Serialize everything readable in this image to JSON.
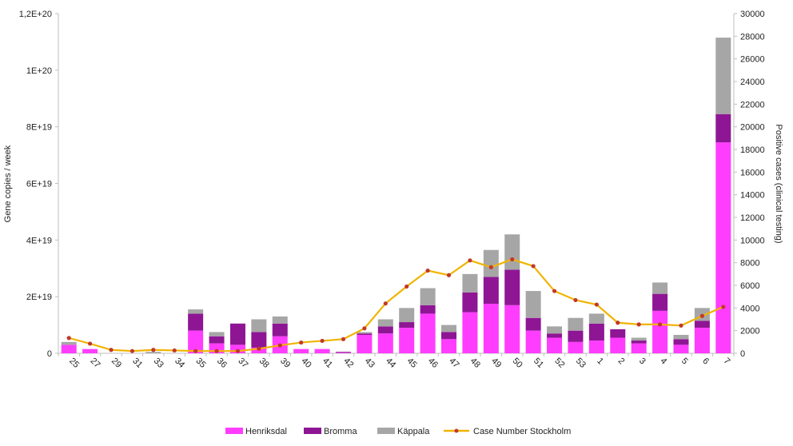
{
  "chart_data": {
    "type": "bar",
    "stacked": true,
    "categories": [
      "25",
      "27",
      "29",
      "31",
      "33",
      "34",
      "35",
      "36",
      "37",
      "38",
      "39",
      "40",
      "41",
      "42",
      "43",
      "44",
      "45",
      "46",
      "47",
      "48",
      "49",
      "50",
      "51",
      "52",
      "53",
      "1",
      "2",
      "3",
      "4",
      "5",
      "6",
      "7"
    ],
    "ylabel": "Gene copies / week",
    "y2label": "Positive cases (clinical testing)",
    "ylim": [
      0,
      1.2e+20
    ],
    "yticks": [
      0,
      2e+19,
      4e+19,
      6e+19,
      8e+19,
      1e+20,
      1.2e+20
    ],
    "ytick_labels": [
      "0",
      "2E+19",
      "4E+19",
      "6E+19",
      "8E+19",
      "1E+20",
      "1,2E+20"
    ],
    "y2lim": [
      0,
      30000
    ],
    "y2ticks": [
      0,
      2000,
      4000,
      6000,
      8000,
      10000,
      12000,
      14000,
      16000,
      18000,
      20000,
      22000,
      24000,
      26000,
      28000,
      30000
    ],
    "y2tick_labels": [
      "0",
      "2000",
      "4000",
      "6000",
      "8000",
      "10000",
      "12000",
      "14000",
      "16000",
      "18000",
      "20000",
      "22000",
      "24000",
      "26000",
      "28000",
      "30000"
    ],
    "grid": false,
    "legend_position": "bottom",
    "series": [
      {
        "name": "Henriksdal",
        "color": "#ff3dff",
        "axis": "left",
        "values": [
          3e+18,
          1.5e+18,
          0,
          0,
          0,
          0,
          8e+18,
          3.5e+18,
          3e+18,
          2e+18,
          6e+18,
          1.5e+18,
          1.5e+18,
          2e+17,
          6.5e+18,
          7e+18,
          9e+18,
          1.4e+19,
          5e+18,
          1.45e+19,
          1.75e+19,
          1.7e+19,
          8e+18,
          5.5e+18,
          4e+18,
          4.5e+18,
          5.5e+18,
          3.5e+18,
          1.5e+19,
          3e+18,
          9e+18,
          7.45e+19
        ]
      },
      {
        "name": "Bromma",
        "color": "#8e1694",
        "axis": "left",
        "values": [
          0,
          0,
          0,
          0,
          0,
          0,
          6e+18,
          2.5e+18,
          7.5e+18,
          5.5e+18,
          4.5e+18,
          0,
          0,
          3e+17,
          5e+17,
          2.5e+18,
          2e+18,
          3e+18,
          2.5e+18,
          7e+18,
          9.5e+18,
          1.25e+19,
          4.5e+18,
          1.5e+18,
          4e+18,
          6e+18,
          3e+18,
          1e+18,
          6e+18,
          2e+18,
          2.5e+18,
          1e+19
        ]
      },
      {
        "name": "Käppala",
        "color": "#a6a6a6",
        "axis": "left",
        "values": [
          1e+18,
          0,
          0,
          0,
          5e+17,
          0,
          1.5e+18,
          1.5e+18,
          0,
          4.5e+18,
          2.5e+18,
          0,
          0,
          0,
          5e+17,
          2.5e+18,
          5e+18,
          6e+18,
          2.5e+18,
          6.5e+18,
          9.5e+18,
          1.25e+19,
          9.5e+18,
          2.5e+18,
          4.5e+18,
          3.5e+18,
          0,
          1e+18,
          4e+18,
          1.5e+18,
          4.5e+18,
          2.7e+19
        ]
      },
      {
        "name": "Case Number Stockholm",
        "color": "#f0b400",
        "marker_color": "#c0392b",
        "axis": "right",
        "type": "line",
        "values": [
          1350,
          850,
          300,
          200,
          300,
          250,
          200,
          200,
          200,
          400,
          700,
          950,
          1100,
          1250,
          2200,
          4400,
          5900,
          7300,
          6900,
          8200,
          7600,
          8300,
          7700,
          5500,
          4700,
          4300,
          2700,
          2550,
          2550,
          2450,
          3300,
          4100
        ]
      }
    ]
  }
}
